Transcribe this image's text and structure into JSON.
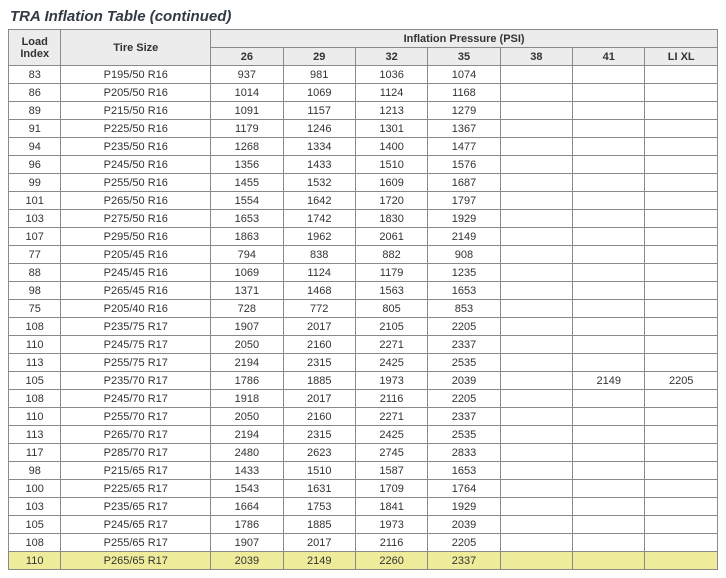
{
  "title": "TRA Inflation Table (continued)",
  "header": {
    "load_index": "Load Index",
    "tire_size": "Tire Size",
    "inflation_pressure": "Inflation Pressure (PSI)",
    "psi_cols": [
      "26",
      "29",
      "32",
      "35",
      "38",
      "41",
      "LI XL"
    ]
  },
  "rows": [
    {
      "li": "83",
      "size": "P195/50 R16",
      "v": [
        "937",
        "981",
        "1036",
        "1074",
        "",
        "",
        ""
      ],
      "hl": false
    },
    {
      "li": "86",
      "size": "P205/50 R16",
      "v": [
        "1014",
        "1069",
        "1124",
        "1168",
        "",
        "",
        ""
      ],
      "hl": false
    },
    {
      "li": "89",
      "size": "P215/50 R16",
      "v": [
        "1091",
        "1157",
        "1213",
        "1279",
        "",
        "",
        ""
      ],
      "hl": false
    },
    {
      "li": "91",
      "size": "P225/50 R16",
      "v": [
        "1179",
        "1246",
        "1301",
        "1367",
        "",
        "",
        ""
      ],
      "hl": false
    },
    {
      "li": "94",
      "size": "P235/50 R16",
      "v": [
        "1268",
        "1334",
        "1400",
        "1477",
        "",
        "",
        ""
      ],
      "hl": false
    },
    {
      "li": "96",
      "size": "P245/50 R16",
      "v": [
        "1356",
        "1433",
        "1510",
        "1576",
        "",
        "",
        ""
      ],
      "hl": false
    },
    {
      "li": "99",
      "size": "P255/50 R16",
      "v": [
        "1455",
        "1532",
        "1609",
        "1687",
        "",
        "",
        ""
      ],
      "hl": false
    },
    {
      "li": "101",
      "size": "P265/50 R16",
      "v": [
        "1554",
        "1642",
        "1720",
        "1797",
        "",
        "",
        ""
      ],
      "hl": false
    },
    {
      "li": "103",
      "size": "P275/50 R16",
      "v": [
        "1653",
        "1742",
        "1830",
        "1929",
        "",
        "",
        ""
      ],
      "hl": false
    },
    {
      "li": "107",
      "size": "P295/50 R16",
      "v": [
        "1863",
        "1962",
        "2061",
        "2149",
        "",
        "",
        ""
      ],
      "hl": false
    },
    {
      "li": "77",
      "size": "P205/45 R16",
      "v": [
        "794",
        "838",
        "882",
        "908",
        "",
        "",
        ""
      ],
      "hl": false
    },
    {
      "li": "88",
      "size": "P245/45 R16",
      "v": [
        "1069",
        "1124",
        "1179",
        "1235",
        "",
        "",
        ""
      ],
      "hl": false
    },
    {
      "li": "98",
      "size": "P265/45 R16",
      "v": [
        "1371",
        "1468",
        "1563",
        "1653",
        "",
        "",
        ""
      ],
      "hl": false
    },
    {
      "li": "75",
      "size": "P205/40 R16",
      "v": [
        "728",
        "772",
        "805",
        "853",
        "",
        "",
        ""
      ],
      "hl": false
    },
    {
      "li": "108",
      "size": "P235/75 R17",
      "v": [
        "1907",
        "2017",
        "2105",
        "2205",
        "",
        "",
        ""
      ],
      "hl": false
    },
    {
      "li": "110",
      "size": "P245/75 R17",
      "v": [
        "2050",
        "2160",
        "2271",
        "2337",
        "",
        "",
        ""
      ],
      "hl": false
    },
    {
      "li": "113",
      "size": "P255/75 R17",
      "v": [
        "2194",
        "2315",
        "2425",
        "2535",
        "",
        "",
        ""
      ],
      "hl": false
    },
    {
      "li": "105",
      "size": "P235/70 R17",
      "v": [
        "1786",
        "1885",
        "1973",
        "2039",
        "",
        "2149",
        "2205"
      ],
      "hl": false
    },
    {
      "li": "108",
      "size": "P245/70 R17",
      "v": [
        "1918",
        "2017",
        "2116",
        "2205",
        "",
        "",
        ""
      ],
      "hl": false
    },
    {
      "li": "110",
      "size": "P255/70 R17",
      "v": [
        "2050",
        "2160",
        "2271",
        "2337",
        "",
        "",
        ""
      ],
      "hl": false
    },
    {
      "li": "113",
      "size": "P265/70 R17",
      "v": [
        "2194",
        "2315",
        "2425",
        "2535",
        "",
        "",
        ""
      ],
      "hl": false
    },
    {
      "li": "117",
      "size": "P285/70 R17",
      "v": [
        "2480",
        "2623",
        "2745",
        "2833",
        "",
        "",
        ""
      ],
      "hl": false
    },
    {
      "li": "98",
      "size": "P215/65 R17",
      "v": [
        "1433",
        "1510",
        "1587",
        "1653",
        "",
        "",
        ""
      ],
      "hl": false
    },
    {
      "li": "100",
      "size": "P225/65 R17",
      "v": [
        "1543",
        "1631",
        "1709",
        "1764",
        "",
        "",
        ""
      ],
      "hl": false
    },
    {
      "li": "103",
      "size": "P235/65 R17",
      "v": [
        "1664",
        "1753",
        "1841",
        "1929",
        "",
        "",
        ""
      ],
      "hl": false
    },
    {
      "li": "105",
      "size": "P245/65 R17",
      "v": [
        "1786",
        "1885",
        "1973",
        "2039",
        "",
        "",
        ""
      ],
      "hl": false
    },
    {
      "li": "108",
      "size": "P255/65 R17",
      "v": [
        "1907",
        "2017",
        "2116",
        "2205",
        "",
        "",
        ""
      ],
      "hl": false
    },
    {
      "li": "110",
      "size": "P265/65 R17",
      "v": [
        "2039",
        "2149",
        "2260",
        "2337",
        "",
        "",
        ""
      ],
      "hl": true
    }
  ]
}
